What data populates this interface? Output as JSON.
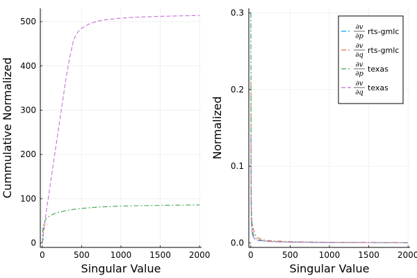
{
  "chart_data": [
    {
      "type": "line",
      "title": "",
      "xlabel": "Singular Value",
      "ylabel": "Cummulative Normalized",
      "xlim": [
        -25,
        2025
      ],
      "ylim": [
        -10,
        530
      ],
      "xticks": [
        0,
        500,
        1000,
        1500,
        2000
      ],
      "xtick_labels": [
        "0",
        "500",
        "1000",
        "1500",
        "2000"
      ],
      "yticks": [
        0,
        100,
        200,
        300,
        400,
        500
      ],
      "ytick_labels": [
        "0",
        "100",
        "200",
        "300",
        "400",
        "500"
      ],
      "grid": true,
      "legend": "none",
      "series": [
        {
          "color": "#009af9",
          "dash": "dash-dot",
          "x": [
            0,
            1,
            3,
            5,
            10,
            20,
            30,
            40,
            50
          ],
          "y": [
            0,
            2,
            5,
            6,
            8,
            10,
            11,
            11.5,
            12
          ]
        },
        {
          "color": "#e26f46",
          "dash": "dash-dot",
          "x": [
            0,
            1,
            3,
            5,
            10,
            20,
            30,
            40,
            50,
            60,
            70
          ],
          "y": [
            0,
            5,
            12,
            18,
            28,
            36,
            40,
            41,
            42,
            42.5,
            43
          ]
        },
        {
          "color": "#3da44d",
          "dash": "dash-dot",
          "x": [
            0,
            10,
            20,
            50,
            100,
            150,
            200,
            300,
            400,
            500,
            700,
            1000,
            1500,
            2000
          ],
          "y": [
            0,
            35,
            45,
            55,
            62,
            66,
            69,
            73,
            76,
            78,
            81,
            83.5,
            85,
            86
          ]
        },
        {
          "color": "#c271d2",
          "dash": "dash",
          "x": [
            0,
            50,
            100,
            150,
            200,
            250,
            300,
            350,
            400,
            450,
            500,
            600,
            700,
            800,
            1000,
            1200,
            1500,
            2000
          ],
          "y": [
            0,
            70,
            130,
            190,
            250,
            310,
            370,
            420,
            460,
            476,
            485,
            495,
            501,
            504,
            508,
            510,
            512,
            514
          ]
        }
      ]
    },
    {
      "type": "line",
      "title": "",
      "xlabel": "Singular Value",
      "ylabel": "Normalized",
      "xlim": [
        -25,
        2025
      ],
      "ylim": [
        -0.006,
        0.306
      ],
      "xticks": [
        0,
        500,
        1000,
        1500,
        2000
      ],
      "xtick_labels": [
        "0",
        "500",
        "1000",
        "1500",
        "2000"
      ],
      "yticks": [
        0,
        0.1,
        0.2,
        0.3
      ],
      "ytick_labels": [
        "0.0",
        "0.1",
        "0.2",
        "0.3"
      ],
      "grid": true,
      "legend": "top-right",
      "series": [
        {
          "name": "rts-gmlc",
          "legend_num": "∂v",
          "legend_den": "∂p",
          "color": "#009af9",
          "dash": "dash-dot",
          "x": [
            1,
            2,
            3,
            4,
            5,
            8,
            12,
            20,
            30,
            50,
            100,
            200,
            500,
            1000,
            2000
          ],
          "y": [
            0.3,
            0.2,
            0.12,
            0.07,
            0.045,
            0.03,
            0.02,
            0.012,
            0.008,
            0.005,
            0.003,
            0.002,
            0.001,
            0.0005,
            0.0002
          ]
        },
        {
          "name": "rts-gmlc",
          "legend_num": "∂v",
          "legend_den": "∂q",
          "color": "#e26f46",
          "dash": "dash-dot",
          "x": [
            1,
            2,
            3,
            5,
            8,
            12,
            20,
            30,
            40,
            60,
            100,
            200,
            500,
            1000,
            2000
          ],
          "y": [
            0.21,
            0.15,
            0.1,
            0.06,
            0.04,
            0.03,
            0.025,
            0.02,
            0.015,
            0.01,
            0.006,
            0.003,
            0.0015,
            0.0007,
            0.0003
          ]
        },
        {
          "name": "texas",
          "legend_num": "∂v",
          "legend_den": "∂p",
          "color": "#3da44d",
          "dash": "dash-dot",
          "x": [
            1,
            2,
            3,
            5,
            8,
            12,
            20,
            30,
            50,
            100,
            200,
            500,
            1000,
            2000
          ],
          "y": [
            0.3,
            0.22,
            0.15,
            0.09,
            0.05,
            0.03,
            0.02,
            0.012,
            0.007,
            0.004,
            0.002,
            0.001,
            0.0005,
            0.0002
          ]
        },
        {
          "name": "texas",
          "legend_num": "∂v",
          "legend_den": "∂q",
          "color": "#c271d2",
          "dash": "dash",
          "x": [
            1,
            2,
            3,
            5,
            8,
            12,
            20,
            30,
            50,
            100,
            200,
            300,
            500,
            1000,
            2000
          ],
          "y": [
            0.14,
            0.1,
            0.07,
            0.045,
            0.03,
            0.02,
            0.012,
            0.008,
            0.005,
            0.003,
            0.002,
            0.0015,
            0.001,
            0.0005,
            0.0002
          ]
        }
      ]
    }
  ]
}
